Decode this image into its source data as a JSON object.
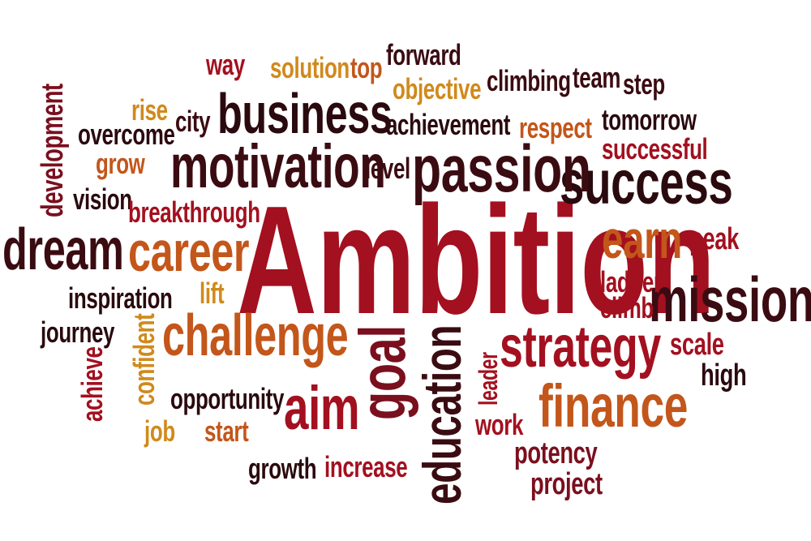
{
  "colors": {
    "background": "#ffffff",
    "dark": "#3a0c12",
    "maroon": "#7a0f1e",
    "red": "#a3101f",
    "orange": "#c3561a",
    "gold": "#d08a1c"
  },
  "words": [
    {
      "key": "ambition",
      "text": "Ambition",
      "color": "#a3101f"
    },
    {
      "key": "mission",
      "text": "mission",
      "color": "#3a0c12"
    },
    {
      "key": "success",
      "text": "success",
      "color": "#2a0a0e"
    },
    {
      "key": "passion",
      "text": "passion",
      "color": "#3a0c12"
    },
    {
      "key": "motivation",
      "text": "motivation",
      "color": "#3a0c12"
    },
    {
      "key": "business",
      "text": "business",
      "color": "#2a0a0e"
    },
    {
      "key": "dream",
      "text": "dream",
      "color": "#3a0c12"
    },
    {
      "key": "career",
      "text": "career",
      "color": "#c3561a"
    },
    {
      "key": "challenge",
      "text": "challenge",
      "color": "#c3561a"
    },
    {
      "key": "strategy",
      "text": "strategy",
      "color": "#a3101f"
    },
    {
      "key": "finance",
      "text": "finance",
      "color": "#c3561a"
    },
    {
      "key": "earn",
      "text": "earn",
      "color": "#c3561a"
    },
    {
      "key": "aim",
      "text": "aim",
      "color": "#a3101f"
    },
    {
      "key": "goal",
      "text": "goal",
      "color": "#7a0f1e"
    },
    {
      "key": "education",
      "text": "education",
      "color": "#3a0c12"
    },
    {
      "key": "way",
      "text": "way",
      "color": "#a3101f"
    },
    {
      "key": "solution",
      "text": "solution",
      "color": "#d08a1c"
    },
    {
      "key": "top",
      "text": "top",
      "color": "#c3561a"
    },
    {
      "key": "forward",
      "text": "forward",
      "color": "#3a0c12"
    },
    {
      "key": "objective",
      "text": "objective",
      "color": "#d08a1c"
    },
    {
      "key": "climbing",
      "text": "climbing",
      "color": "#3a0c12"
    },
    {
      "key": "team",
      "text": "team",
      "color": "#3a0c12"
    },
    {
      "key": "step",
      "text": "step",
      "color": "#3a0c12"
    },
    {
      "key": "rise",
      "text": "rise",
      "color": "#d08a1c"
    },
    {
      "key": "city",
      "text": "city",
      "color": "#3a0c12"
    },
    {
      "key": "achievement",
      "text": "achievement",
      "color": "#2a0a0e"
    },
    {
      "key": "respect",
      "text": "respect",
      "color": "#c3561a"
    },
    {
      "key": "tomorrow",
      "text": "tomorrow",
      "color": "#2a0a0e"
    },
    {
      "key": "overcome",
      "text": "overcome",
      "color": "#2a0a0e"
    },
    {
      "key": "successful",
      "text": "successful",
      "color": "#a3101f"
    },
    {
      "key": "grow",
      "text": "grow",
      "color": "#c3561a"
    },
    {
      "key": "level",
      "text": "level",
      "color": "#3a0c12"
    },
    {
      "key": "development",
      "text": "development",
      "color": "#7a0f1e"
    },
    {
      "key": "vision",
      "text": "vision",
      "color": "#2a0a0e"
    },
    {
      "key": "breakthrough",
      "text": "breakthrough",
      "color": "#a3101f"
    },
    {
      "key": "peak",
      "text": "peak",
      "color": "#a3101f"
    },
    {
      "key": "ladder",
      "text": "ladder",
      "color": "#a3101f"
    },
    {
      "key": "climb",
      "text": "climb",
      "color": "#a3101f"
    },
    {
      "key": "inspiration",
      "text": "inspiration",
      "color": "#2a0a0e"
    },
    {
      "key": "lift",
      "text": "lift",
      "color": "#d08a1c"
    },
    {
      "key": "journey",
      "text": "journey",
      "color": "#2a0a0e"
    },
    {
      "key": "confident",
      "text": "confident",
      "color": "#d08a1c"
    },
    {
      "key": "achieve",
      "text": "achieve",
      "color": "#a3101f"
    },
    {
      "key": "scale",
      "text": "scale",
      "color": "#a3101f"
    },
    {
      "key": "high",
      "text": "high",
      "color": "#2a0a0e"
    },
    {
      "key": "leader",
      "text": "leader",
      "color": "#a3101f"
    },
    {
      "key": "opportunity",
      "text": "opportunity",
      "color": "#2a0a0e"
    },
    {
      "key": "job",
      "text": "job",
      "color": "#d08a1c"
    },
    {
      "key": "start",
      "text": "start",
      "color": "#c3561a"
    },
    {
      "key": "work",
      "text": "work",
      "color": "#a3101f"
    },
    {
      "key": "potency",
      "text": "potency",
      "color": "#7a0f1e"
    },
    {
      "key": "growth",
      "text": "growth",
      "color": "#2a0a0e"
    },
    {
      "key": "increase",
      "text": "increase",
      "color": "#a3101f"
    },
    {
      "key": "project",
      "text": "project",
      "color": "#7a0f1e"
    }
  ]
}
